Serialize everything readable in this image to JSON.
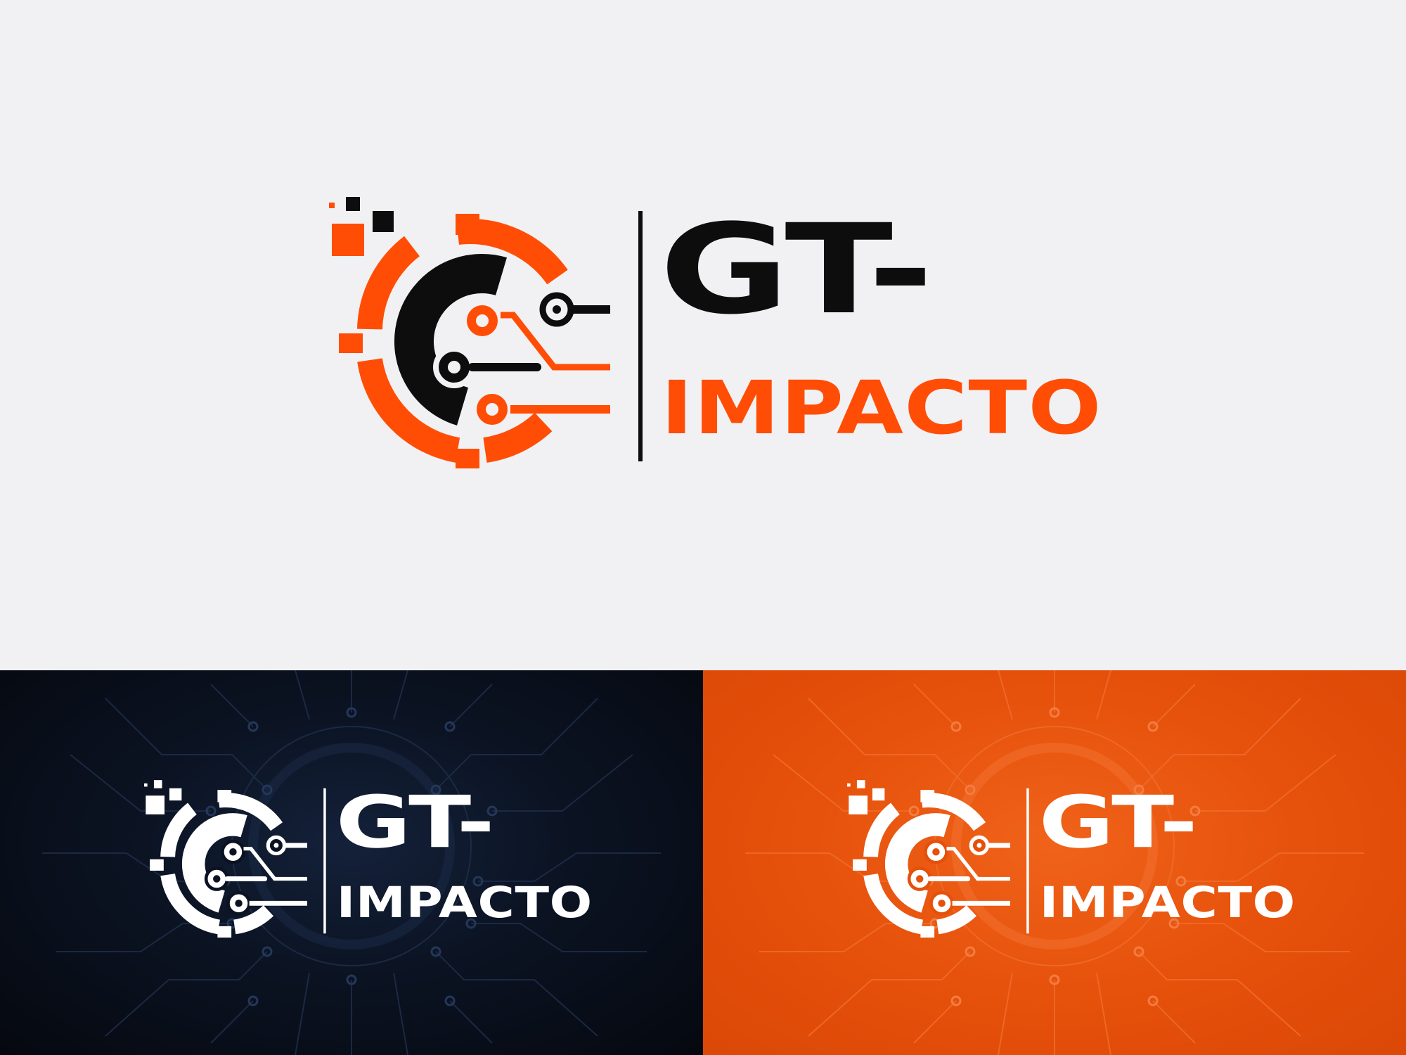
{
  "brand": {
    "line1": "GT-",
    "line2": "IMPACTO"
  },
  "colors": {
    "background_light": "#f1f1f3",
    "accent_orange": "#ff4d06",
    "text_dark": "#0d0d0d",
    "background_navy": "#0b1322",
    "background_orange": "#e5500a",
    "white": "#ffffff"
  },
  "panels": [
    {
      "name": "light",
      "icon": "circuit-gear-logo-icon",
      "emblem_colors": [
        "#ff4d06",
        "#0d0d0d"
      ]
    },
    {
      "name": "dark-navy",
      "icon": "circuit-gear-logo-icon",
      "emblem_colors": [
        "#ffffff",
        "#ffffff"
      ]
    },
    {
      "name": "orange",
      "icon": "circuit-gear-logo-icon",
      "emblem_colors": [
        "#ffffff",
        "#ffffff"
      ]
    }
  ]
}
